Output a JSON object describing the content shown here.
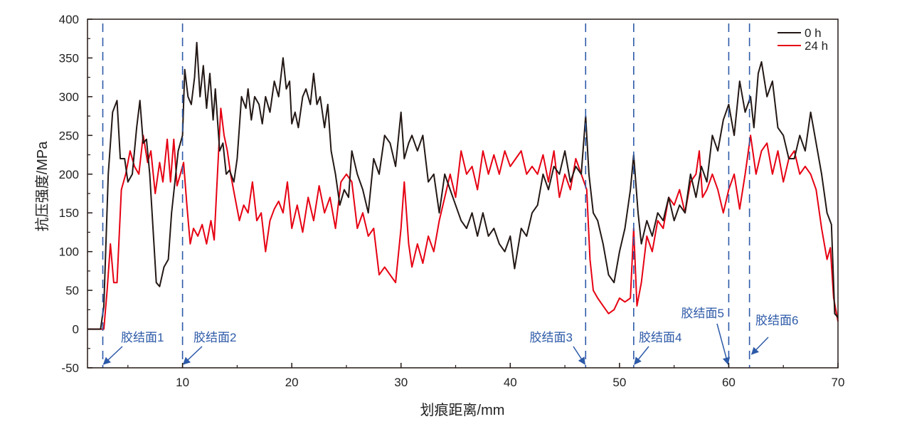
{
  "chart_data": {
    "type": "line",
    "xlabel": "划痕距离/mm",
    "ylabel": "抗压强度/MPa",
    "xlim": [
      1.3,
      70
    ],
    "ylim": [
      -50,
      400
    ],
    "xticks": [
      10,
      20,
      30,
      40,
      50,
      60,
      70
    ],
    "yticks": [
      -50,
      0,
      50,
      100,
      150,
      200,
      250,
      300,
      350,
      400
    ],
    "legend_position": "top-right",
    "series": [
      {
        "name": "0 h",
        "color": "#231815",
        "x": [
          1.3,
          2.5,
          2.8,
          3.2,
          3.6,
          4.0,
          4.3,
          4.7,
          5.0,
          5.4,
          5.8,
          6.1,
          6.4,
          6.7,
          7.0,
          7.3,
          7.6,
          7.9,
          8.3,
          8.7,
          9.0,
          9.3,
          9.6,
          10.0,
          10.2,
          10.5,
          10.8,
          11.1,
          11.3,
          11.6,
          11.9,
          12.2,
          12.5,
          12.8,
          13.0,
          13.4,
          13.7,
          14.0,
          14.3,
          14.7,
          15.0,
          15.4,
          15.8,
          16.0,
          16.3,
          16.6,
          17.0,
          17.3,
          17.6,
          18.0,
          18.4,
          18.8,
          19.2,
          19.5,
          19.8,
          20.0,
          20.3,
          20.6,
          21.0,
          21.3,
          21.7,
          22.0,
          22.3,
          22.6,
          23.0,
          23.3,
          23.6,
          24.0,
          24.4,
          24.8,
          25.2,
          25.5,
          26.0,
          26.5,
          27.0,
          27.5,
          28.0,
          28.5,
          29.0,
          29.5,
          30.0,
          30.3,
          30.7,
          31.0,
          31.5,
          32.0,
          32.5,
          33.0,
          33.5,
          34.0,
          34.5,
          35.0,
          35.5,
          36.0,
          36.5,
          37.0,
          37.5,
          38.0,
          38.5,
          39.0,
          39.5,
          40.0,
          40.4,
          41.0,
          41.5,
          42.0,
          42.5,
          43.0,
          43.5,
          44.0,
          44.5,
          45.0,
          45.5,
          46.0,
          46.5,
          46.9,
          47.2,
          47.6,
          48.0,
          48.5,
          49.0,
          49.5,
          50.0,
          50.5,
          51.0,
          51.3,
          51.7,
          52.0,
          52.5,
          53.0,
          53.5,
          54.0,
          54.5,
          55.0,
          55.5,
          56.0,
          56.5,
          57.0,
          57.5,
          58.0,
          58.5,
          59.0,
          59.5,
          60.0,
          60.5,
          61.0,
          61.5,
          62.0,
          62.3,
          62.7,
          63.0,
          63.5,
          64.0,
          64.5,
          65.0,
          65.5,
          66.0,
          66.5,
          67.0,
          67.5,
          68.0,
          68.5,
          69.0,
          69.4,
          69.7,
          70.0
        ],
        "y": [
          0,
          0,
          30,
          200,
          280,
          295,
          220,
          220,
          190,
          200,
          260,
          295,
          240,
          245,
          200,
          130,
          60,
          55,
          80,
          90,
          150,
          190,
          230,
          250,
          335,
          300,
          290,
          325,
          370,
          300,
          340,
          285,
          330,
          270,
          310,
          230,
          240,
          200,
          205,
          190,
          220,
          300,
          285,
          310,
          270,
          300,
          290,
          265,
          300,
          280,
          320,
          300,
          350,
          310,
          320,
          265,
          280,
          260,
          300,
          310,
          290,
          330,
          290,
          300,
          260,
          290,
          230,
          200,
          160,
          180,
          170,
          230,
          200,
          180,
          150,
          220,
          200,
          250,
          240,
          210,
          280,
          220,
          240,
          250,
          230,
          250,
          190,
          200,
          150,
          200,
          180,
          160,
          140,
          130,
          150,
          120,
          150,
          120,
          130,
          110,
          100,
          120,
          78,
          130,
          120,
          150,
          160,
          200,
          180,
          210,
          200,
          230,
          190,
          210,
          200,
          275,
          200,
          150,
          140,
          110,
          70,
          60,
          100,
          130,
          180,
          225,
          150,
          110,
          140,
          120,
          150,
          140,
          170,
          140,
          160,
          150,
          200,
          170,
          210,
          190,
          250,
          230,
          270,
          290,
          250,
          320,
          280,
          300,
          260,
          330,
          345,
          300,
          320,
          260,
          250,
          220,
          220,
          250,
          230,
          280,
          240,
          200,
          150,
          135,
          20,
          15
        ]
      },
      {
        "name": "24 h",
        "color": "#e60012",
        "x": [
          1.3,
          2.8,
          3.1,
          3.4,
          3.7,
          4.0,
          4.4,
          4.8,
          5.2,
          5.6,
          6.0,
          6.4,
          6.8,
          7.1,
          7.5,
          7.9,
          8.2,
          8.6,
          8.9,
          9.2,
          9.5,
          9.8,
          10.1,
          10.4,
          10.7,
          11.0,
          11.4,
          11.8,
          12.2,
          12.6,
          12.9,
          13.2,
          13.5,
          13.8,
          14.1,
          14.4,
          14.8,
          15.2,
          15.6,
          16.0,
          16.4,
          16.8,
          17.2,
          17.6,
          18.0,
          18.4,
          18.8,
          19.2,
          19.6,
          20.0,
          20.5,
          21.0,
          21.5,
          22.0,
          22.5,
          23.0,
          23.5,
          24.0,
          24.5,
          25.0,
          25.5,
          26.0,
          26.5,
          27.0,
          27.5,
          28.0,
          28.5,
          29.0,
          29.5,
          30.0,
          30.3,
          30.7,
          31.0,
          31.5,
          32.0,
          32.5,
          33.0,
          33.5,
          34.0,
          34.5,
          35.0,
          35.5,
          36.0,
          36.5,
          37.0,
          37.5,
          38.0,
          38.5,
          39.0,
          39.5,
          40.0,
          40.5,
          41.0,
          41.5,
          42.0,
          42.5,
          43.0,
          43.5,
          44.0,
          44.5,
          45.0,
          45.5,
          46.0,
          46.5,
          47.0,
          47.3,
          47.6,
          48.0,
          48.5,
          49.0,
          49.5,
          50.0,
          50.5,
          51.0,
          51.3,
          51.6,
          52.0,
          52.5,
          53.0,
          53.5,
          54.0,
          54.5,
          55.0,
          55.5,
          56.0,
          56.5,
          57.0,
          57.3,
          57.6,
          58.0,
          58.5,
          59.0,
          59.5,
          60.0,
          60.5,
          61.0,
          61.5,
          62.0,
          62.5,
          63.0,
          63.5,
          64.0,
          64.5,
          65.0,
          65.5,
          66.0,
          66.5,
          67.0,
          67.5,
          68.0,
          68.5,
          69.0,
          69.3,
          69.6,
          70.0
        ],
        "y": [
          0,
          0,
          50,
          110,
          60,
          60,
          180,
          200,
          230,
          210,
          200,
          250,
          215,
          230,
          175,
          215,
          190,
          245,
          190,
          245,
          185,
          200,
          215,
          160,
          110,
          130,
          120,
          135,
          110,
          140,
          115,
          200,
          285,
          250,
          230,
          200,
          170,
          140,
          160,
          150,
          190,
          140,
          150,
          100,
          140,
          155,
          165,
          150,
          190,
          130,
          160,
          125,
          170,
          140,
          185,
          150,
          170,
          130,
          190,
          200,
          190,
          130,
          150,
          120,
          130,
          70,
          80,
          70,
          60,
          130,
          190,
          110,
          80,
          110,
          85,
          120,
          100,
          140,
          170,
          200,
          170,
          230,
          200,
          210,
          180,
          230,
          200,
          225,
          200,
          230,
          210,
          220,
          230,
          200,
          210,
          200,
          225,
          190,
          230,
          170,
          200,
          180,
          220,
          200,
          180,
          90,
          50,
          40,
          30,
          20,
          25,
          40,
          35,
          40,
          130,
          30,
          60,
          120,
          100,
          140,
          130,
          170,
          160,
          180,
          150,
          190,
          200,
          230,
          170,
          180,
          200,
          180,
          150,
          180,
          200,
          155,
          200,
          250,
          200,
          230,
          240,
          200,
          230,
          190,
          220,
          230,
          200,
          210,
          200,
          180,
          130,
          90,
          105,
          40,
          10
        ]
      }
    ],
    "interfaces": [
      {
        "label": "胶结面1",
        "x": 2.7
      },
      {
        "label": "胶结面2",
        "x": 10.0
      },
      {
        "label": "胶结面3",
        "x": 46.9
      },
      {
        "label": "胶结面4",
        "x": 51.3
      },
      {
        "label": "胶结面5",
        "x": 60.0
      },
      {
        "label": "胶结面6",
        "x": 61.9
      }
    ],
    "interface_color": "#2d5aa8"
  }
}
